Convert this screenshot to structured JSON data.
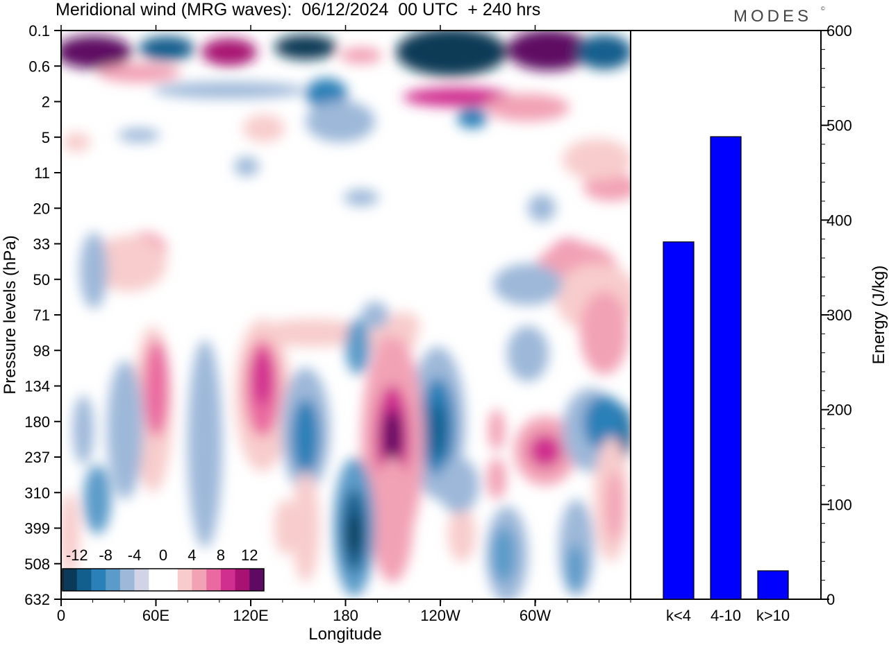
{
  "header": {
    "title": "Meridional wind (MRG waves):  06/12/2024  00 UTC  + 240 hrs",
    "brand": "MODES",
    "brand_mark": "©"
  },
  "colors": {
    "colorbar": [
      "#0a3a57",
      "#125f8e",
      "#2a80b8",
      "#5b9bc9",
      "#9db8d9",
      "#d0d4e6",
      "#ffffff",
      "#ffffff",
      "#f8cccc",
      "#f2a2b5",
      "#ea6aa0",
      "#d02f8f",
      "#a81273",
      "#5e0a63"
    ],
    "bar_fill": "#0000ff",
    "bar_stroke": "#000000"
  },
  "chart_data": [
    {
      "type": "heatmap",
      "title": "Meridional wind (MRG waves)",
      "xlabel": "Longitude",
      "ylabel": "Pressure levels (hPa)",
      "x_ticks": [
        "0",
        "60E",
        "120E",
        "180",
        "120W",
        "60W"
      ],
      "y_ticks": [
        "0.1",
        "0.6",
        "2",
        "5",
        "11",
        "20",
        "33",
        "50",
        "71",
        "98",
        "134",
        "180",
        "237",
        "310",
        "399",
        "508",
        "632"
      ],
      "colorbar_labels": [
        "-12",
        "-8",
        "-4",
        "0",
        "4",
        "8",
        "12"
      ],
      "colorbar_range": [
        -14,
        14
      ]
    },
    {
      "type": "bar",
      "categories": [
        "k<4",
        "4-10",
        "k>10"
      ],
      "values": [
        377,
        488,
        30
      ],
      "ylabel": "Energy (J/kg)",
      "ylim": [
        0,
        600
      ],
      "y_ticks": [
        "0",
        "100",
        "200",
        "300",
        "400",
        "500",
        "600"
      ]
    }
  ]
}
